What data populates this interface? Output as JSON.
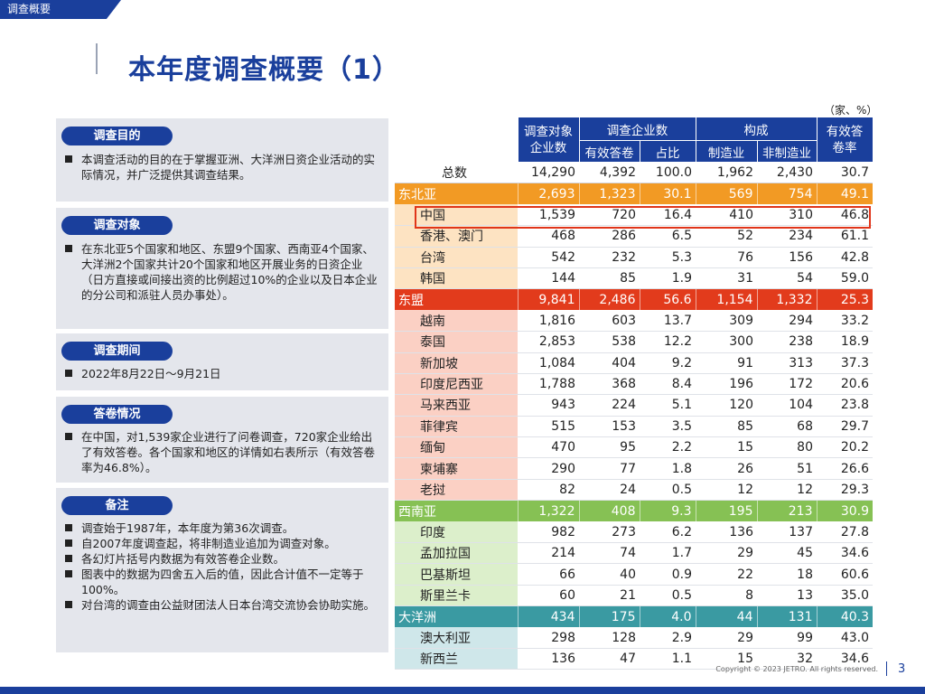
{
  "header": {
    "tag": "调查概要",
    "title": "本年度调查概要（1）"
  },
  "unit_note": "（家、%）",
  "panels": {
    "purpose": {
      "label": "调查目的",
      "items": [
        "本调查活动的目的在于掌握亚洲、大洋洲日资企业活动的实际情况，并广泛提供其调查结果。"
      ]
    },
    "target": {
      "label": "调查对象",
      "items": [
        "在东北亚5个国家和地区、东盟9个国家、西南亚4个国家、大洋洲2个国家共计20个国家和地区开展业务的日资企业（日方直接或间接出资的比例超过10%的企业以及日本企业的分公司和派驻人员办事处）。"
      ]
    },
    "period": {
      "label": "调查期间",
      "items": [
        "2022年8月22日～9月21日"
      ]
    },
    "response": {
      "label": "答卷情况",
      "items": [
        "在中国，对1,539家企业进行了问卷调查，720家企业给出了有效答卷。各个国家和地区的详情如右表所示（有效答卷率为46.8%）。"
      ]
    },
    "notes": {
      "label": "备注",
      "items": [
        "调查始于1987年，本年度为第36次调查。",
        "自2007年度调查起，将非制造业追加为调查对象。",
        "各幻灯片括号内数据为有效答卷企业数。",
        "图表中的数据为四舍五入后的值，因此合计值不一定等于100%。",
        "对台湾的调查由公益财团法人日本台湾交流协会协助实施。"
      ]
    }
  },
  "table": {
    "headers": {
      "col1": "调查对象企业数",
      "group_survey": "调查企业数",
      "valid": "有效答卷",
      "share": "占比",
      "group_comp": "构成",
      "manu": "制造业",
      "nonmanu": "非制造业",
      "rate": "有效答卷率"
    },
    "total": [
      "总数",
      "14,290",
      "4,392",
      "100.0",
      "1,962",
      "2,430",
      "30.7"
    ],
    "ne_region": [
      "东北亚",
      "2,693",
      "1,323",
      "30.1",
      "569",
      "754",
      "49.1"
    ],
    "ne": [
      [
        "中国",
        "1,539",
        "720",
        "16.4",
        "410",
        "310",
        "46.8"
      ],
      [
        "香港、澳门",
        "468",
        "286",
        "6.5",
        "52",
        "234",
        "61.1"
      ],
      [
        "台湾",
        "542",
        "232",
        "5.3",
        "76",
        "156",
        "42.8"
      ],
      [
        "韩国",
        "144",
        "85",
        "1.9",
        "31",
        "54",
        "59.0"
      ]
    ],
    "as_region": [
      "东盟",
      "9,841",
      "2,486",
      "56.6",
      "1,154",
      "1,332",
      "25.3"
    ],
    "as": [
      [
        "越南",
        "1,816",
        "603",
        "13.7",
        "309",
        "294",
        "33.2"
      ],
      [
        "泰国",
        "2,853",
        "538",
        "12.2",
        "300",
        "238",
        "18.9"
      ],
      [
        "新加坡",
        "1,084",
        "404",
        "9.2",
        "91",
        "313",
        "37.3"
      ],
      [
        "印度尼西亚",
        "1,788",
        "368",
        "8.4",
        "196",
        "172",
        "20.6"
      ],
      [
        "马来西亚",
        "943",
        "224",
        "5.1",
        "120",
        "104",
        "23.8"
      ],
      [
        "菲律宾",
        "515",
        "153",
        "3.5",
        "85",
        "68",
        "29.7"
      ],
      [
        "缅甸",
        "470",
        "95",
        "2.2",
        "15",
        "80",
        "20.2"
      ],
      [
        "柬埔寨",
        "290",
        "77",
        "1.8",
        "26",
        "51",
        "26.6"
      ],
      [
        "老挝",
        "82",
        "24",
        "0.5",
        "12",
        "12",
        "29.3"
      ]
    ],
    "sa_region": [
      "西南亚",
      "1,322",
      "408",
      "9.3",
      "195",
      "213",
      "30.9"
    ],
    "sa": [
      [
        "印度",
        "982",
        "273",
        "6.2",
        "136",
        "137",
        "27.8"
      ],
      [
        "孟加拉国",
        "214",
        "74",
        "1.7",
        "29",
        "45",
        "34.6"
      ],
      [
        "巴基斯坦",
        "66",
        "40",
        "0.9",
        "22",
        "18",
        "60.6"
      ],
      [
        "斯里兰卡",
        "60",
        "21",
        "0.5",
        "8",
        "13",
        "35.0"
      ]
    ],
    "oc_region": [
      "大洋洲",
      "434",
      "175",
      "4.0",
      "44",
      "131",
      "40.3"
    ],
    "oc": [
      [
        "澳大利亚",
        "298",
        "128",
        "2.9",
        "29",
        "99",
        "43.0"
      ],
      [
        "新西兰",
        "136",
        "47",
        "1.1",
        "15",
        "32",
        "34.6"
      ]
    ]
  },
  "footer": {
    "copyright": "Copyright © 2023 JETRO. All rights reserved.",
    "page": "3"
  }
}
